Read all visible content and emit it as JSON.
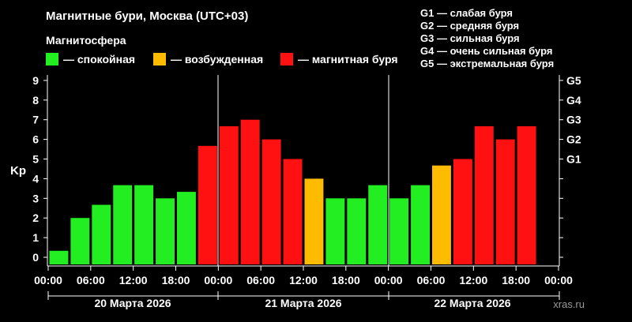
{
  "title": "Магнитные бури, Москва (UTC+03)",
  "legend": {
    "heading": "Магнитосфера",
    "items": [
      {
        "label": "— спокойная",
        "color": "#22ee22"
      },
      {
        "label": "— возбужденная",
        "color": "#ffbb00"
      },
      {
        "label": "— магнитная буря",
        "color": "#ff1111"
      }
    ]
  },
  "g_legend": [
    "G1 — слабая буря",
    "G2 — средняя буря",
    "G3 — сильная буря",
    "G4 — очень сильная буря",
    "G5 — экстремальная буря"
  ],
  "watermark": "xras.ru",
  "chart_data": {
    "type": "bar",
    "ylabel": "Kp",
    "ylim": [
      0,
      9
    ],
    "yticks": [
      "0",
      "1",
      "2",
      "3",
      "4",
      "5",
      "6",
      "7",
      "8",
      "9"
    ],
    "right_ticks": [
      {
        "label": "G1",
        "value": 5
      },
      {
        "label": "G2",
        "value": 6
      },
      {
        "label": "G3",
        "value": 7
      },
      {
        "label": "G4",
        "value": 8
      },
      {
        "label": "G5",
        "value": 9
      }
    ],
    "xticks": [
      "00:00",
      "06:00",
      "12:00",
      "18:00",
      "00:00",
      "06:00",
      "12:00",
      "18:00",
      "00:00",
      "06:00",
      "12:00",
      "18:00",
      "00:00"
    ],
    "days": [
      "20 Марта 2026",
      "21 Марта 2026",
      "22 Марта 2026"
    ],
    "values": [
      0.33,
      2.0,
      2.67,
      3.67,
      3.67,
      3.0,
      3.33,
      5.67,
      6.67,
      7.0,
      6.0,
      5.0,
      4.0,
      3.0,
      3.0,
      3.67,
      3.0,
      3.67,
      4.67,
      5.0,
      6.67,
      6.0,
      6.67,
      null
    ],
    "levels": [
      "quiet",
      "quiet",
      "quiet",
      "quiet",
      "quiet",
      "quiet",
      "quiet",
      "storm",
      "storm",
      "storm",
      "storm",
      "storm",
      "active",
      "quiet",
      "quiet",
      "quiet",
      "quiet",
      "quiet",
      "active",
      "storm",
      "storm",
      "storm",
      "storm",
      null
    ],
    "colors": {
      "quiet": "#22ee22",
      "active": "#ffbb00",
      "storm": "#ff1111"
    },
    "grid": false
  }
}
